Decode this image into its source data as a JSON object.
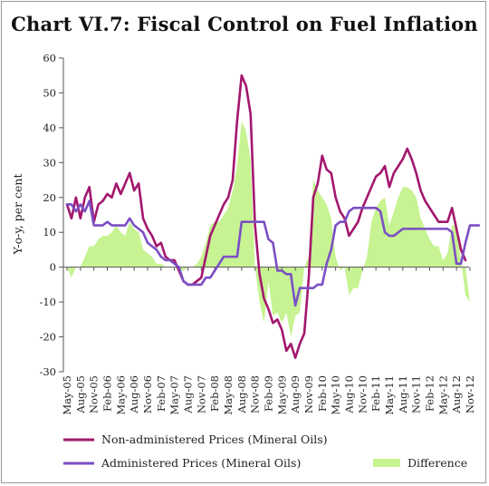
{
  "chart_data": {
    "type": "line",
    "title": "Chart VI.7: Fiscal Control on Fuel Inflation",
    "ylabel": "Y-o-y, per cent",
    "xlabel": "",
    "ylim": [
      -30,
      60
    ],
    "yticks": [
      60,
      50,
      40,
      30,
      20,
      10,
      0,
      -10,
      -20,
      -30
    ],
    "x_tick_labels": [
      "May-05",
      "Aug-05",
      "Nov-05",
      "Feb-06",
      "May-06",
      "Aug-06",
      "Nov-06",
      "Feb-07",
      "May-07",
      "Aug-07",
      "Nov-07",
      "Feb-08",
      "May-08",
      "Aug-08",
      "Nov-08",
      "Feb-09",
      "May-09",
      "Aug-09",
      "Nov-09",
      "Feb-10",
      "May-10",
      "Aug-10",
      "Nov-10",
      "Feb-11",
      "May-11",
      "Aug-11",
      "Nov-11",
      "Feb-12",
      "May-12",
      "Aug-12",
      "Nov-12"
    ],
    "series": [
      {
        "name": "Non-administered Prices (Mineral Oils)",
        "color": "#a3176e",
        "style": "line",
        "values": [
          18,
          14,
          20,
          14,
          20,
          23,
          13,
          18,
          19,
          21,
          20,
          24,
          21,
          24,
          27,
          22,
          24,
          14,
          11,
          9,
          6,
          7,
          3,
          2,
          2,
          -1,
          -4,
          -5,
          -5,
          -4,
          -3,
          3,
          9,
          12,
          15,
          18,
          20,
          25,
          42,
          55,
          52,
          44,
          12,
          -2,
          -9,
          -12,
          -16,
          -15,
          -18,
          -24,
          -22,
          -26,
          -22,
          -19,
          -3,
          20,
          24,
          32,
          28,
          27,
          20,
          16,
          14,
          9,
          11,
          13,
          17,
          20,
          23,
          26,
          27,
          29,
          23,
          27,
          29,
          31,
          34,
          31,
          27,
          22,
          19,
          17,
          15,
          13,
          13,
          13,
          17,
          11,
          5,
          2
        ]
      },
      {
        "name": "Administered Prices (Mineral Oils)",
        "color": "#7b4fc4",
        "style": "line",
        "values": [
          18,
          18,
          16,
          18,
          16,
          19,
          12,
          12,
          12,
          13,
          12,
          12,
          12,
          12,
          14,
          12,
          11,
          10,
          7,
          6,
          5,
          3,
          2,
          2,
          1,
          0,
          -4,
          -5,
          -5,
          -5,
          -5,
          -3,
          -3,
          -1,
          1,
          3,
          3,
          3,
          3,
          13,
          13,
          13,
          13,
          13,
          13,
          8,
          7,
          -1,
          -1,
          -2,
          -2,
          -11,
          -6,
          -6,
          -6,
          -6,
          -5,
          -5,
          1,
          5,
          12,
          13,
          13,
          16,
          17,
          17,
          17,
          17,
          17,
          17,
          16,
          10,
          9,
          9,
          10,
          11,
          11,
          11,
          11,
          11,
          11,
          11,
          11,
          11,
          11,
          11,
          10,
          1,
          1,
          7,
          12,
          12,
          12
        ]
      },
      {
        "name": "Difference",
        "color": "#c7f392",
        "style": "area",
        "values": [
          0,
          -3,
          0,
          0,
          3,
          6,
          6,
          8,
          9,
          9,
          10,
          12,
          10,
          9,
          13,
          11,
          10,
          5,
          4,
          3,
          1,
          1,
          0,
          0,
          0,
          -1,
          -1,
          0,
          0,
          1,
          3,
          7,
          12,
          13,
          13,
          15,
          17,
          22,
          29,
          42,
          39,
          31,
          0,
          -10,
          -16,
          -4,
          -14,
          -13,
          -16,
          -13,
          -20,
          -14,
          -13,
          0,
          3,
          25,
          22,
          20,
          18,
          14,
          3,
          -1,
          0,
          -8,
          -6,
          -6,
          -1,
          3,
          13,
          17,
          19,
          20,
          12,
          16,
          20,
          23,
          23,
          22,
          20,
          14,
          11,
          8,
          6,
          6,
          2,
          4,
          12,
          12,
          2,
          -8,
          -10
        ]
      }
    ]
  },
  "legend": [
    {
      "label": "Non-administered Prices (Mineral Oils)",
      "color": "#a3176e"
    },
    {
      "label": "Administered Prices (Mineral Oils)",
      "color": "#7b4fc4"
    },
    {
      "label": "Difference",
      "color": "#c7f392"
    }
  ]
}
